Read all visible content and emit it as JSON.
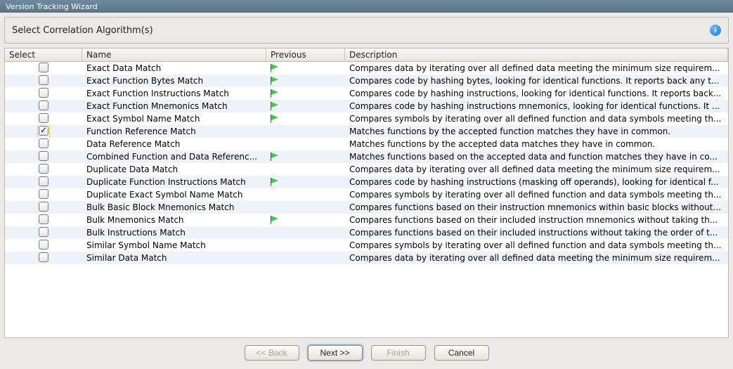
{
  "window": {
    "title": "Version Tracking Wizard"
  },
  "header": {
    "title": "Select Correlation Algorithm(s)"
  },
  "columns": {
    "select": "Select",
    "name": "Name",
    "previous": "Previous",
    "description": "Description"
  },
  "rows": [
    {
      "checked": false,
      "focused": false,
      "name": "Exact Data Match",
      "flag": true,
      "desc": "Compares data by iterating over all defined data meeting the minimum size requirem..."
    },
    {
      "checked": false,
      "focused": false,
      "name": "Exact Function Bytes Match",
      "flag": true,
      "desc": "Compares code by hashing bytes, looking for identical functions. It reports back any t..."
    },
    {
      "checked": false,
      "focused": false,
      "name": "Exact Function Instructions Match",
      "flag": true,
      "desc": "Compares code by hashing instructions, looking for identical functions. It reports back..."
    },
    {
      "checked": false,
      "focused": false,
      "name": "Exact Function Mnemonics Match",
      "flag": true,
      "desc": "Compares code by hashing instructions mnemonics, looking for identical functions. It ..."
    },
    {
      "checked": false,
      "focused": false,
      "name": "Exact Symbol Name Match",
      "flag": true,
      "desc": "Compares symbols by iterating over all defined function and data symbols meeting th..."
    },
    {
      "checked": true,
      "focused": true,
      "name": "Function Reference Match",
      "flag": false,
      "desc": "Matches functions by the accepted function matches they have in common."
    },
    {
      "checked": false,
      "focused": false,
      "name": "Data Reference Match",
      "flag": false,
      "desc": "Matches functions by the accepted data matches they have in common."
    },
    {
      "checked": false,
      "focused": false,
      "name": "Combined Function and Data Referenc...",
      "flag": true,
      "desc": "Matches functions based on the accepted data and function matches they have in co..."
    },
    {
      "checked": false,
      "focused": false,
      "name": "Duplicate Data Match",
      "flag": false,
      "desc": "Compares data by iterating over all defined data meeting the minimum size requirem..."
    },
    {
      "checked": false,
      "focused": false,
      "name": "Duplicate Function Instructions Match",
      "flag": true,
      "desc": "Compares code by hashing instructions (masking off operands), looking for identical f..."
    },
    {
      "checked": false,
      "focused": false,
      "name": "Duplicate Exact Symbol Name Match",
      "flag": false,
      "desc": "Compares symbols by iterating over all defined function and data symbols meeting th..."
    },
    {
      "checked": false,
      "focused": false,
      "name": "Bulk Basic Block Mnemonics Match",
      "flag": false,
      "desc": "Compares functions based on their instruction mnemonics within basic blocks without..."
    },
    {
      "checked": false,
      "focused": false,
      "name": "Bulk Mnemonics Match",
      "flag": true,
      "desc": "Compares functions based on their included instruction mnemonics without taking th..."
    },
    {
      "checked": false,
      "focused": false,
      "name": "Bulk Instructions Match",
      "flag": false,
      "desc": "Compares functions based on their included instructions without taking the order of t..."
    },
    {
      "checked": false,
      "focused": false,
      "name": "Similar Symbol Name Match",
      "flag": false,
      "desc": "Compares symbols by iterating over all defined function and data symbols meeting th..."
    },
    {
      "checked": false,
      "focused": false,
      "name": "Similar Data Match",
      "flag": false,
      "desc": "Compares data by iterating over all defined data meeting the minimum size requirem..."
    }
  ],
  "buttons": {
    "back": "<< Back",
    "next": "Next >>",
    "finish": "Finish",
    "cancel": "Cancel"
  },
  "colors": {
    "titlebar_bg": "#5a7689",
    "panel_bg": "#eceae6",
    "row_alt": "#eef3fa",
    "flag": "#3fc94a"
  }
}
